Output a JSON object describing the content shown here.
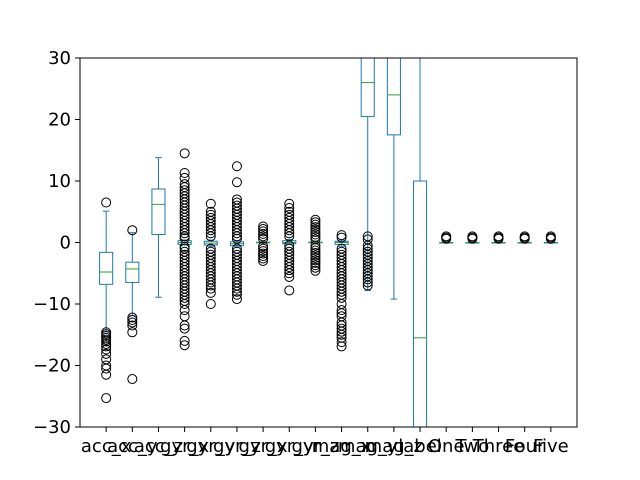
{
  "chart_data": {
    "type": "box",
    "title": "",
    "xlabel": "",
    "ylabel": "",
    "ylim": [
      -30,
      30
    ],
    "yticks": [
      -30,
      -20,
      -10,
      0,
      10,
      20,
      30
    ],
    "ytick_labels": [
      "−30",
      "−20",
      "−10",
      "0",
      "10",
      "20",
      "30"
    ],
    "colors": {
      "box": "#1f77b4",
      "median": "#2ca02c",
      "flier": "#000000"
    },
    "categories": [
      "acc_x",
      "acc_y",
      "acc_z",
      "gyr_x",
      "gyr_y",
      "gyr_z",
      "gyr_x",
      "gyr_y",
      "gyr_z",
      "mag_x",
      "mag_y",
      "mag_z",
      "label",
      "One",
      "Two",
      "Three",
      "Four",
      "Five"
    ],
    "tick_labels": [
      "acc_x",
      "acc_y",
      "acc_z",
      "gyr_x",
      "gyr_y",
      "gyr_z",
      "gyr_x",
      "gyr_y",
      "gyr_z",
      "mag_x",
      "mag_y",
      "mag_z",
      "label",
      "One",
      "Two",
      "Three",
      "Four",
      "Five"
    ],
    "boxes": [
      {
        "whislo": -14.5,
        "q1": -6.8,
        "med": -4.8,
        "q3": -1.6,
        "whishi": 5.1,
        "fliers": [
          6.5,
          -14.6,
          -14.9,
          -15.2,
          -15.5,
          -15.8,
          -16.1,
          -16.5,
          -16.9,
          -17.4,
          -18.1,
          -19.0,
          -20.0,
          -20.5,
          -21.5,
          -25.3
        ]
      },
      {
        "whislo": -11.9,
        "q1": -6.5,
        "med": -4.3,
        "q3": -3.2,
        "whishi": 1.6,
        "fliers": [
          2.0,
          -12.2,
          -12.6,
          -13.0,
          -13.5,
          -14.6,
          -22.2
        ]
      },
      {
        "whislo": -8.9,
        "q1": 1.3,
        "med": 6.2,
        "q3": 8.7,
        "whishi": 13.8,
        "fliers": []
      },
      {
        "whislo": -0.4,
        "q1": -0.3,
        "med": 0.0,
        "q3": 0.3,
        "whishi": 0.4,
        "fliers": [
          14.5,
          11.3,
          10.5,
          9.5,
          9.0,
          8.5,
          8.0,
          7.5,
          7.0,
          6.5,
          6.0,
          5.5,
          5.0,
          4.5,
          4.0,
          3.5,
          3.0,
          2.5,
          2.0,
          1.5,
          1.0,
          0.7,
          -0.7,
          -1.0,
          -1.5,
          -2.0,
          -2.5,
          -3.0,
          -3.5,
          -4.0,
          -4.5,
          -5.0,
          -5.5,
          -6.0,
          -6.5,
          -7.0,
          -7.5,
          -8.0,
          -8.5,
          -9.0,
          -9.5,
          -10.0,
          -11.0,
          -12.0,
          -13.5,
          -14.0,
          -16.0,
          -16.7
        ]
      },
      {
        "whislo": -0.6,
        "q1": -0.4,
        "med": -0.1,
        "q3": 0.2,
        "whishi": 0.4,
        "fliers": [
          6.3,
          5.0,
          4.5,
          4.0,
          3.5,
          3.0,
          2.5,
          2.0,
          1.5,
          1.0,
          -1.0,
          -1.5,
          -2.0,
          -2.5,
          -3.0,
          -3.5,
          -4.0,
          -4.5,
          -5.0,
          -5.5,
          -6.0,
          -6.5,
          -7.0,
          -7.5,
          -8.2,
          -10.0
        ]
      },
      {
        "whislo": -0.7,
        "q1": -0.5,
        "med": -0.2,
        "q3": 0.1,
        "whishi": 0.3,
        "fliers": [
          12.4,
          9.8,
          7.0,
          6.5,
          6.0,
          5.5,
          5.0,
          4.5,
          4.0,
          3.5,
          3.0,
          2.5,
          2.0,
          1.5,
          1.0,
          0.6,
          -1.0,
          -1.5,
          -2.0,
          -2.5,
          -3.0,
          -3.5,
          -4.0,
          -4.5,
          -5.0,
          -5.5,
          -6.0,
          -6.5,
          -7.0,
          -7.5,
          -8.0,
          -8.5,
          -9.2
        ]
      },
      {
        "whislo": -0.1,
        "q1": -0.05,
        "med": 0.0,
        "q3": 0.05,
        "whishi": 0.1,
        "fliers": [
          2.6,
          2.2,
          1.8,
          1.4,
          1.0,
          0.6,
          -0.6,
          -1.0,
          -1.4,
          -1.8,
          -2.2,
          -2.6,
          -3.0
        ]
      },
      {
        "whislo": -0.3,
        "q1": -0.2,
        "med": 0.0,
        "q3": 0.3,
        "whishi": 0.5,
        "fliers": [
          6.3,
          5.6,
          5.0,
          4.5,
          4.0,
          3.5,
          3.0,
          2.5,
          2.0,
          1.5,
          1.0,
          -0.5,
          -1.0,
          -1.5,
          -2.0,
          -2.5,
          -3.0,
          -3.5,
          -4.0,
          -4.5,
          -5.0,
          -5.6,
          -7.8
        ]
      },
      {
        "whislo": -0.1,
        "q1": -0.05,
        "med": 0.0,
        "q3": 0.05,
        "whishi": 0.1,
        "fliers": [
          3.7,
          3.3,
          2.9,
          2.5,
          2.1,
          1.7,
          1.3,
          0.9,
          0.5,
          -0.5,
          -0.9,
          -1.3,
          -1.7,
          -2.1,
          -2.5,
          -2.9,
          -3.3,
          -3.7,
          -4.1,
          -4.6
        ]
      },
      {
        "whislo": -0.6,
        "q1": -0.3,
        "med": 0.0,
        "q3": 0.2,
        "whishi": 0.4,
        "fliers": [
          1.2,
          0.8,
          -1.0,
          -1.5,
          -2.0,
          -2.5,
          -3.0,
          -3.5,
          -4.0,
          -4.5,
          -5.0,
          -5.5,
          -6.0,
          -6.5,
          -7.0,
          -7.5,
          -8.0,
          -8.5,
          -9.0,
          -10.0,
          -11.0,
          -11.5,
          -12.0,
          -13.0,
          -13.5,
          -14.0,
          -14.5,
          -15.0,
          -15.5,
          -16.2,
          -16.9
        ]
      },
      {
        "whislo": -7.8,
        "q1": 20.5,
        "med": 26.0,
        "q3": 31.0,
        "whishi": 31.0,
        "fliers": [
          1.0,
          0.5,
          -0.5,
          -1.0,
          -1.5,
          -2.0,
          -2.5,
          -3.0,
          -3.5,
          -4.0,
          -4.5,
          -5.0,
          -5.5,
          -6.0,
          -6.5,
          -7.0
        ]
      },
      {
        "whislo": -9.2,
        "q1": 17.5,
        "med": 24.0,
        "q3": 31.0,
        "whishi": 31.0,
        "fliers": []
      },
      {
        "whislo": -31.0,
        "q1": -31.0,
        "med": -15.5,
        "q3": 10.0,
        "whishi": 31.0,
        "fliers": []
      },
      {
        "whislo": 0.0,
        "q1": 0.0,
        "med": 0.0,
        "q3": 0.0,
        "whishi": 0.0,
        "fliers": [
          0.6,
          0.8,
          1.0
        ]
      },
      {
        "whislo": 0.0,
        "q1": 0.0,
        "med": 0.0,
        "q3": 0.0,
        "whishi": 0.0,
        "fliers": [
          0.6,
          0.8,
          1.0
        ]
      },
      {
        "whislo": 0.0,
        "q1": 0.0,
        "med": 0.0,
        "q3": 0.0,
        "whishi": 0.0,
        "fliers": [
          0.6,
          0.8,
          1.0
        ]
      },
      {
        "whislo": 0.0,
        "q1": 0.0,
        "med": 0.0,
        "q3": 0.0,
        "whishi": 0.0,
        "fliers": [
          0.6,
          0.8,
          1.0
        ]
      },
      {
        "whislo": 0.0,
        "q1": 0.0,
        "med": 0.0,
        "q3": 0.0,
        "whishi": 0.0,
        "fliers": [
          0.6,
          0.8,
          1.0
        ]
      }
    ]
  }
}
